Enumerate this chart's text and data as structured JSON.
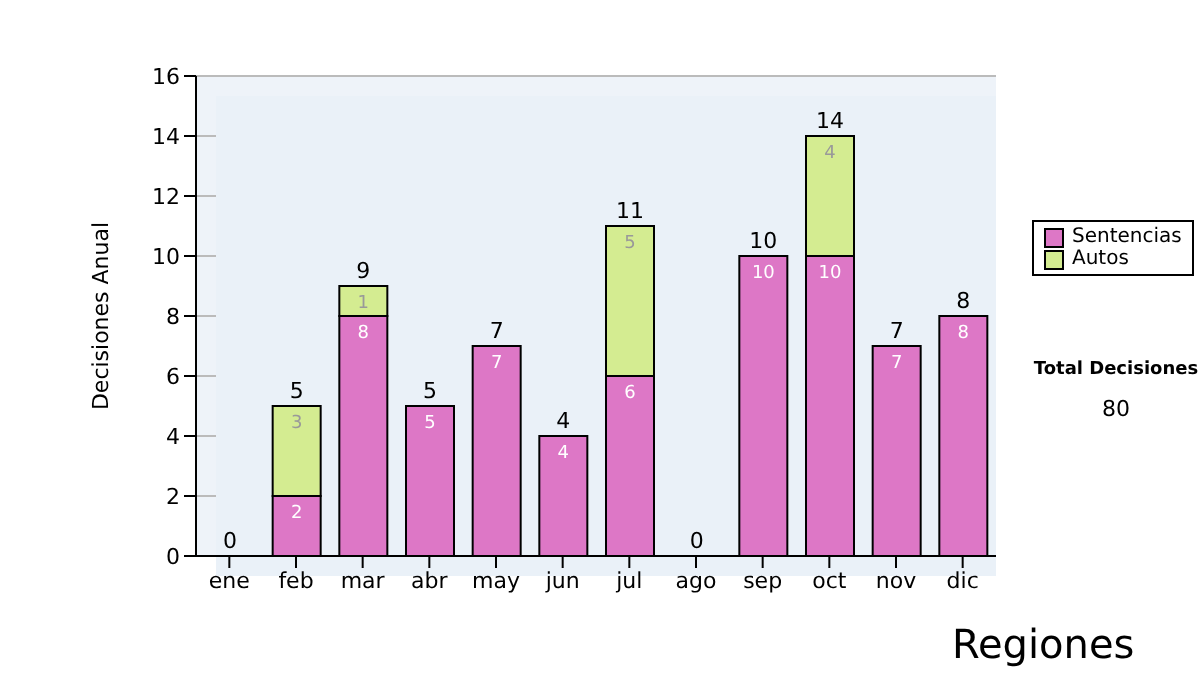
{
  "chart_data": {
    "type": "bar",
    "ylabel": "Decisiones Anual",
    "categories": [
      "ene",
      "feb",
      "mar",
      "abr",
      "may",
      "jun",
      "jul",
      "ago",
      "sep",
      "oct",
      "nov",
      "dic"
    ],
    "series": [
      {
        "name": "Sentencias",
        "color": "#dd77c6",
        "values": [
          0,
          2,
          8,
          5,
          7,
          4,
          6,
          0,
          10,
          10,
          7,
          8
        ],
        "value_labels": [
          null,
          "2",
          "8",
          "5",
          "7",
          "4",
          "6",
          null,
          "10",
          "10",
          "7",
          "8"
        ]
      },
      {
        "name": "Autos",
        "color": "#d4ec91",
        "values": [
          0,
          3,
          1,
          0,
          0,
          0,
          5,
          0,
          0,
          4,
          0,
          0
        ],
        "value_labels": [
          null,
          "3",
          "1",
          null,
          null,
          null,
          "5",
          null,
          null,
          "4",
          null,
          null
        ]
      }
    ],
    "stacked": true,
    "totals": [
      "0",
      "5",
      "9",
      "5",
      "7",
      "4",
      "11",
      "0",
      "10",
      "14",
      "7",
      "8"
    ],
    "ylim": [
      0,
      16
    ],
    "yticks": [
      0,
      2,
      4,
      6,
      8,
      10,
      12,
      14,
      16
    ],
    "grid": "y",
    "legend": "right",
    "annotations": [
      "Total Decisiones",
      "80",
      "Regiones"
    ]
  }
}
